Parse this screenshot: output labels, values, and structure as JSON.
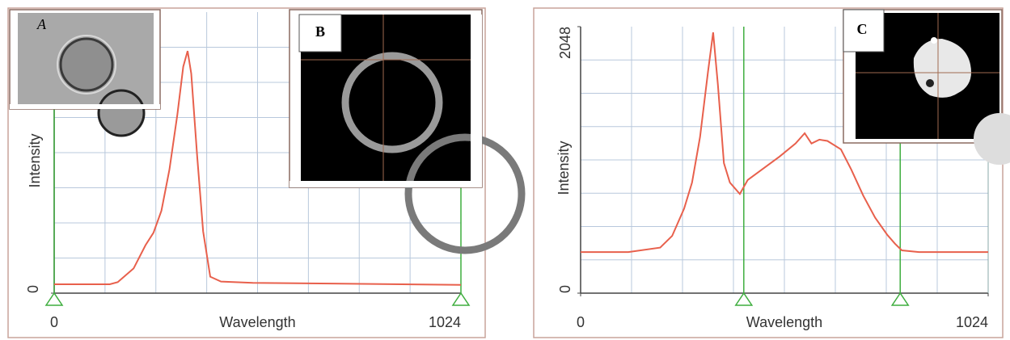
{
  "chart_data": [
    {
      "type": "line",
      "x_label": "Wavelength",
      "y_label": "Intensity",
      "inset_label": "A",
      "color": "#e8604c",
      "grid": true,
      "xlim": [
        0,
        1024
      ],
      "xticks": [
        0,
        1024
      ],
      "ylim": [
        0,
        2048
      ],
      "yticks": [
        0
      ],
      "cursors": [
        0,
        1024
      ],
      "x": [
        0,
        140,
        160,
        200,
        230,
        250,
        270,
        290,
        310,
        325,
        336,
        345,
        360,
        375,
        393,
        420,
        500,
        700,
        1024
      ],
      "values": [
        65,
        65,
        80,
        180,
        350,
        440,
        600,
        900,
        1300,
        1650,
        1765,
        1600,
        1000,
        450,
        120,
        85,
        75,
        70,
        60
      ]
    },
    {
      "type": "line",
      "x_label": "Wavelength",
      "y_label": "Intensity",
      "inset_label": "C",
      "color": "#e8604c",
      "grid": true,
      "xlim": [
        0,
        1024
      ],
      "xticks": [
        0,
        1024
      ],
      "ylim": [
        0,
        2048
      ],
      "yticks": [
        0,
        2048
      ],
      "cursors": [
        410,
        803
      ],
      "x": [
        0,
        120,
        200,
        230,
        260,
        280,
        300,
        320,
        333,
        345,
        360,
        375,
        400,
        420,
        460,
        500,
        540,
        563,
        580,
        600,
        620,
        654,
        680,
        710,
        740,
        770,
        790,
        807,
        850,
        1024
      ],
      "values": [
        316,
        316,
        350,
        440,
        650,
        850,
        1200,
        1700,
        2004,
        1600,
        1000,
        850,
        763,
        870,
        960,
        1050,
        1150,
        1229,
        1150,
        1180,
        1170,
        1105,
        950,
        750,
        580,
        450,
        380,
        329,
        316,
        316
      ]
    }
  ],
  "inset_b_label": "B"
}
